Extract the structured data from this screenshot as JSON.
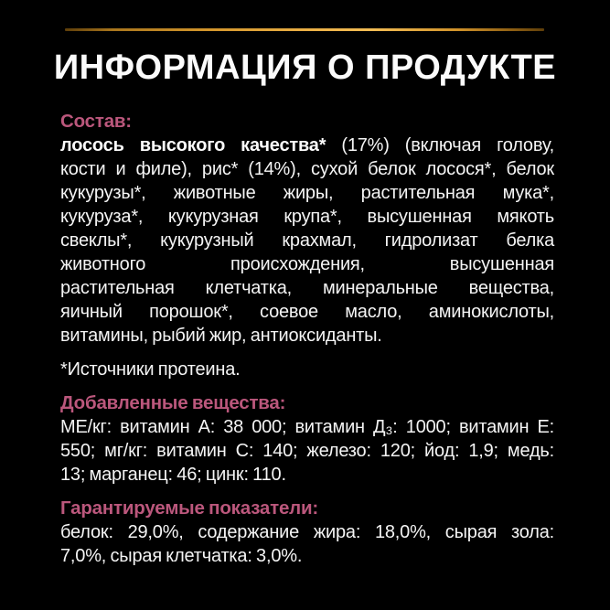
{
  "page_title": "ИНФОРМАЦИЯ О ПРОДУКТЕ",
  "colors": {
    "background": "#000000",
    "body_text": "#f4f4f4",
    "heading_pink": "#bb577c",
    "gold_line": "#ecb147"
  },
  "sections": {
    "composition": {
      "heading": "Состав:",
      "first_line_bold": "лосось высокого качества*",
      "first_line_rest": " (17%) (включая голову,",
      "lines": [
        "кости и филе), рис* (14%), сухой белок лосося*, белок",
        "кукурузы*, животные жиры, растительная мука*,",
        "кукуруза*, кукурузная крупа*, высушенная мякоть",
        "свеклы*, кукурузный крахмал, гидролизат белка",
        "животного происхождения, высушенная",
        "растительная клетчатка, минеральные вещества,",
        "яичный порошок*, соевое масло, аминокислоты,",
        "витамины, рыбий жир, антиоксиданты."
      ],
      "footnote": "*Источники протеина."
    },
    "additives": {
      "heading": "Добавленные вещества:",
      "lines": [
        "МЕ/кг: витамин А: 38 000; витамин Д₃: 1000; витамин Е:",
        "550; мг/кг: витамин С: 140; железо: 120; йод: 1,9; медь:",
        "13; марганец: 46; цинк: 110."
      ]
    },
    "guaranteed": {
      "heading": "Гарантируемые показатели:",
      "lines": [
        "белок: 29,0%, содержание жира: 18,0%, сырая зола:",
        "7,0%, сырая клетчатка: 3,0%."
      ]
    }
  }
}
